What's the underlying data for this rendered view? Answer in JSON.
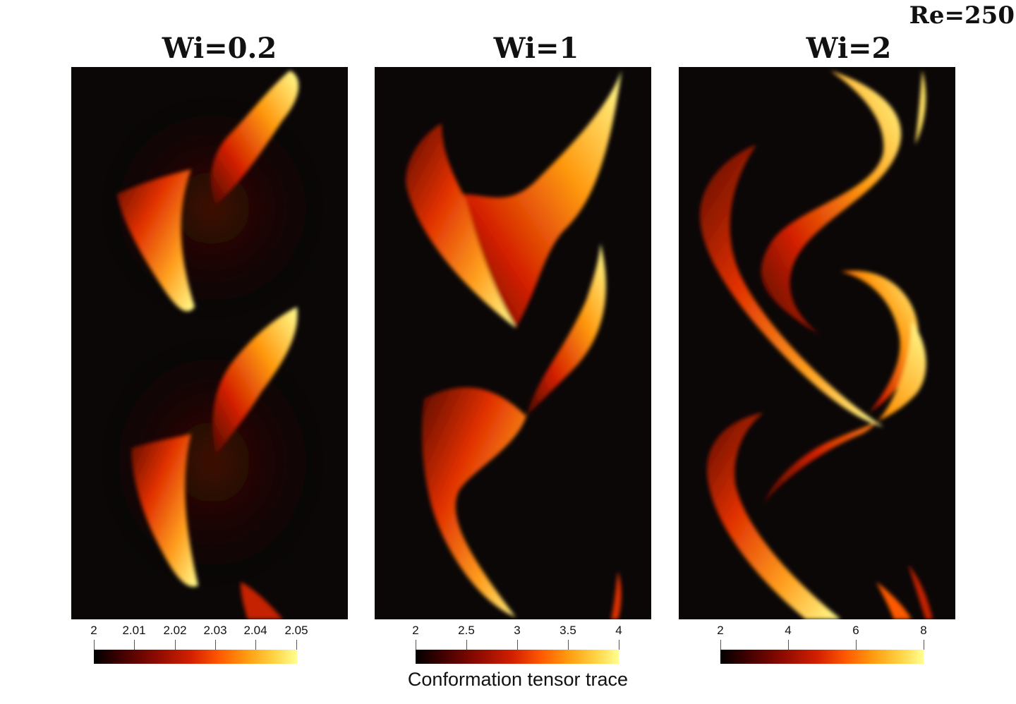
{
  "re_label": "Re=250",
  "panels": [
    {
      "title": "Wi=0.2",
      "ticks": [
        "2",
        "2.01",
        "2.02",
        "2.03",
        "2.04",
        "2.05"
      ]
    },
    {
      "title": "Wi=1",
      "ticks": [
        "2",
        "2.5",
        "3",
        "3.5",
        "4"
      ]
    },
    {
      "title": "Wi=2",
      "ticks": [
        "2",
        "4",
        "6",
        "8"
      ]
    }
  ],
  "colorbar_title": "Conformation tensor trace",
  "colors": {
    "background": "#0b0707",
    "low": "#000000",
    "mid": "#d42000",
    "high": "#ffff90"
  }
}
